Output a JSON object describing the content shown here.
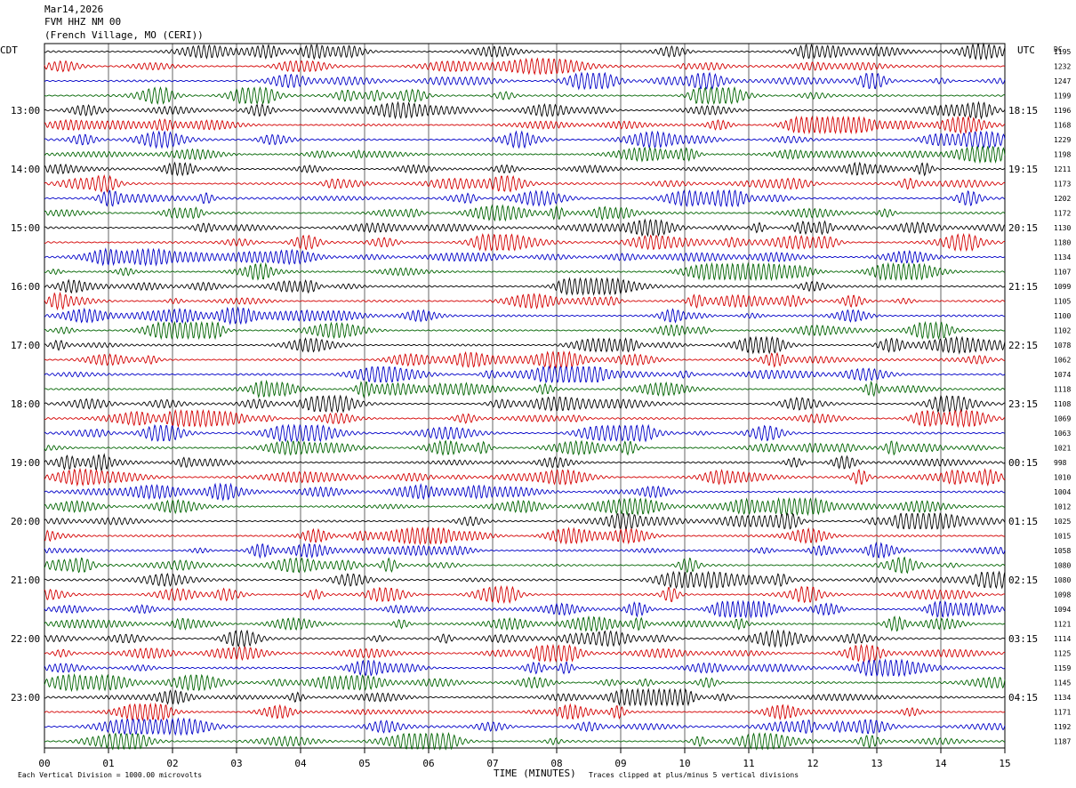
{
  "header": {
    "date": "Mar14,2026",
    "station": "FVM HHZ NM 00",
    "location": "(French Village, MO (CERI))"
  },
  "left_tz": "CDT",
  "right_tz": "UTC",
  "rms_header": "DC",
  "footer": {
    "scale": "Each Vertical Division = 1000.00 microvolts",
    "clip": "Traces clipped at plus/minus 5 vertical divisions"
  },
  "chart_data": {
    "type": "line",
    "title": "",
    "xlabel": "TIME (MINUTES)",
    "ylabel": "",
    "xlim": [
      0,
      15
    ],
    "x_ticks": [
      "00",
      "01",
      "02",
      "03",
      "04",
      "05",
      "06",
      "07",
      "08",
      "09",
      "10",
      "11",
      "12",
      "13",
      "14",
      "15"
    ],
    "trace_colors": [
      "#000000",
      "#d40000",
      "#0000c8",
      "#006400"
    ],
    "traces_per_hour": 4,
    "start_hour_local": "12:00",
    "left_time_labels": [
      "13:00",
      "14:00",
      "15:00",
      "16:00",
      "17:00",
      "18:00",
      "19:00",
      "20:00",
      "21:00",
      "22:00",
      "23:00"
    ],
    "right_time_labels": [
      "18:15",
      "19:15",
      "20:15",
      "21:15",
      "22:15",
      "23:15",
      "00:15",
      "01:15",
      "02:15",
      "03:15",
      "04:15"
    ],
    "trace_offsets": [
      "1195",
      "1232",
      "1247",
      "1199",
      "1196",
      "1168",
      "1229",
      "1198",
      "1211",
      "1173",
      "1202",
      "1172",
      "1130",
      "1180",
      "1134",
      "1107",
      "1099",
      "1105",
      "1100",
      "1102",
      "1078",
      "1062",
      "1074",
      "1118",
      "1108",
      "1069",
      "1063",
      "1021",
      "998",
      "1010",
      "1004",
      "1012",
      "1025",
      "1015",
      "1058",
      "1080",
      "1080",
      "1098",
      "1094",
      "1121",
      "1114",
      "1125",
      "1159",
      "1145",
      "1134",
      "1171",
      "1192",
      "1187"
    ]
  }
}
